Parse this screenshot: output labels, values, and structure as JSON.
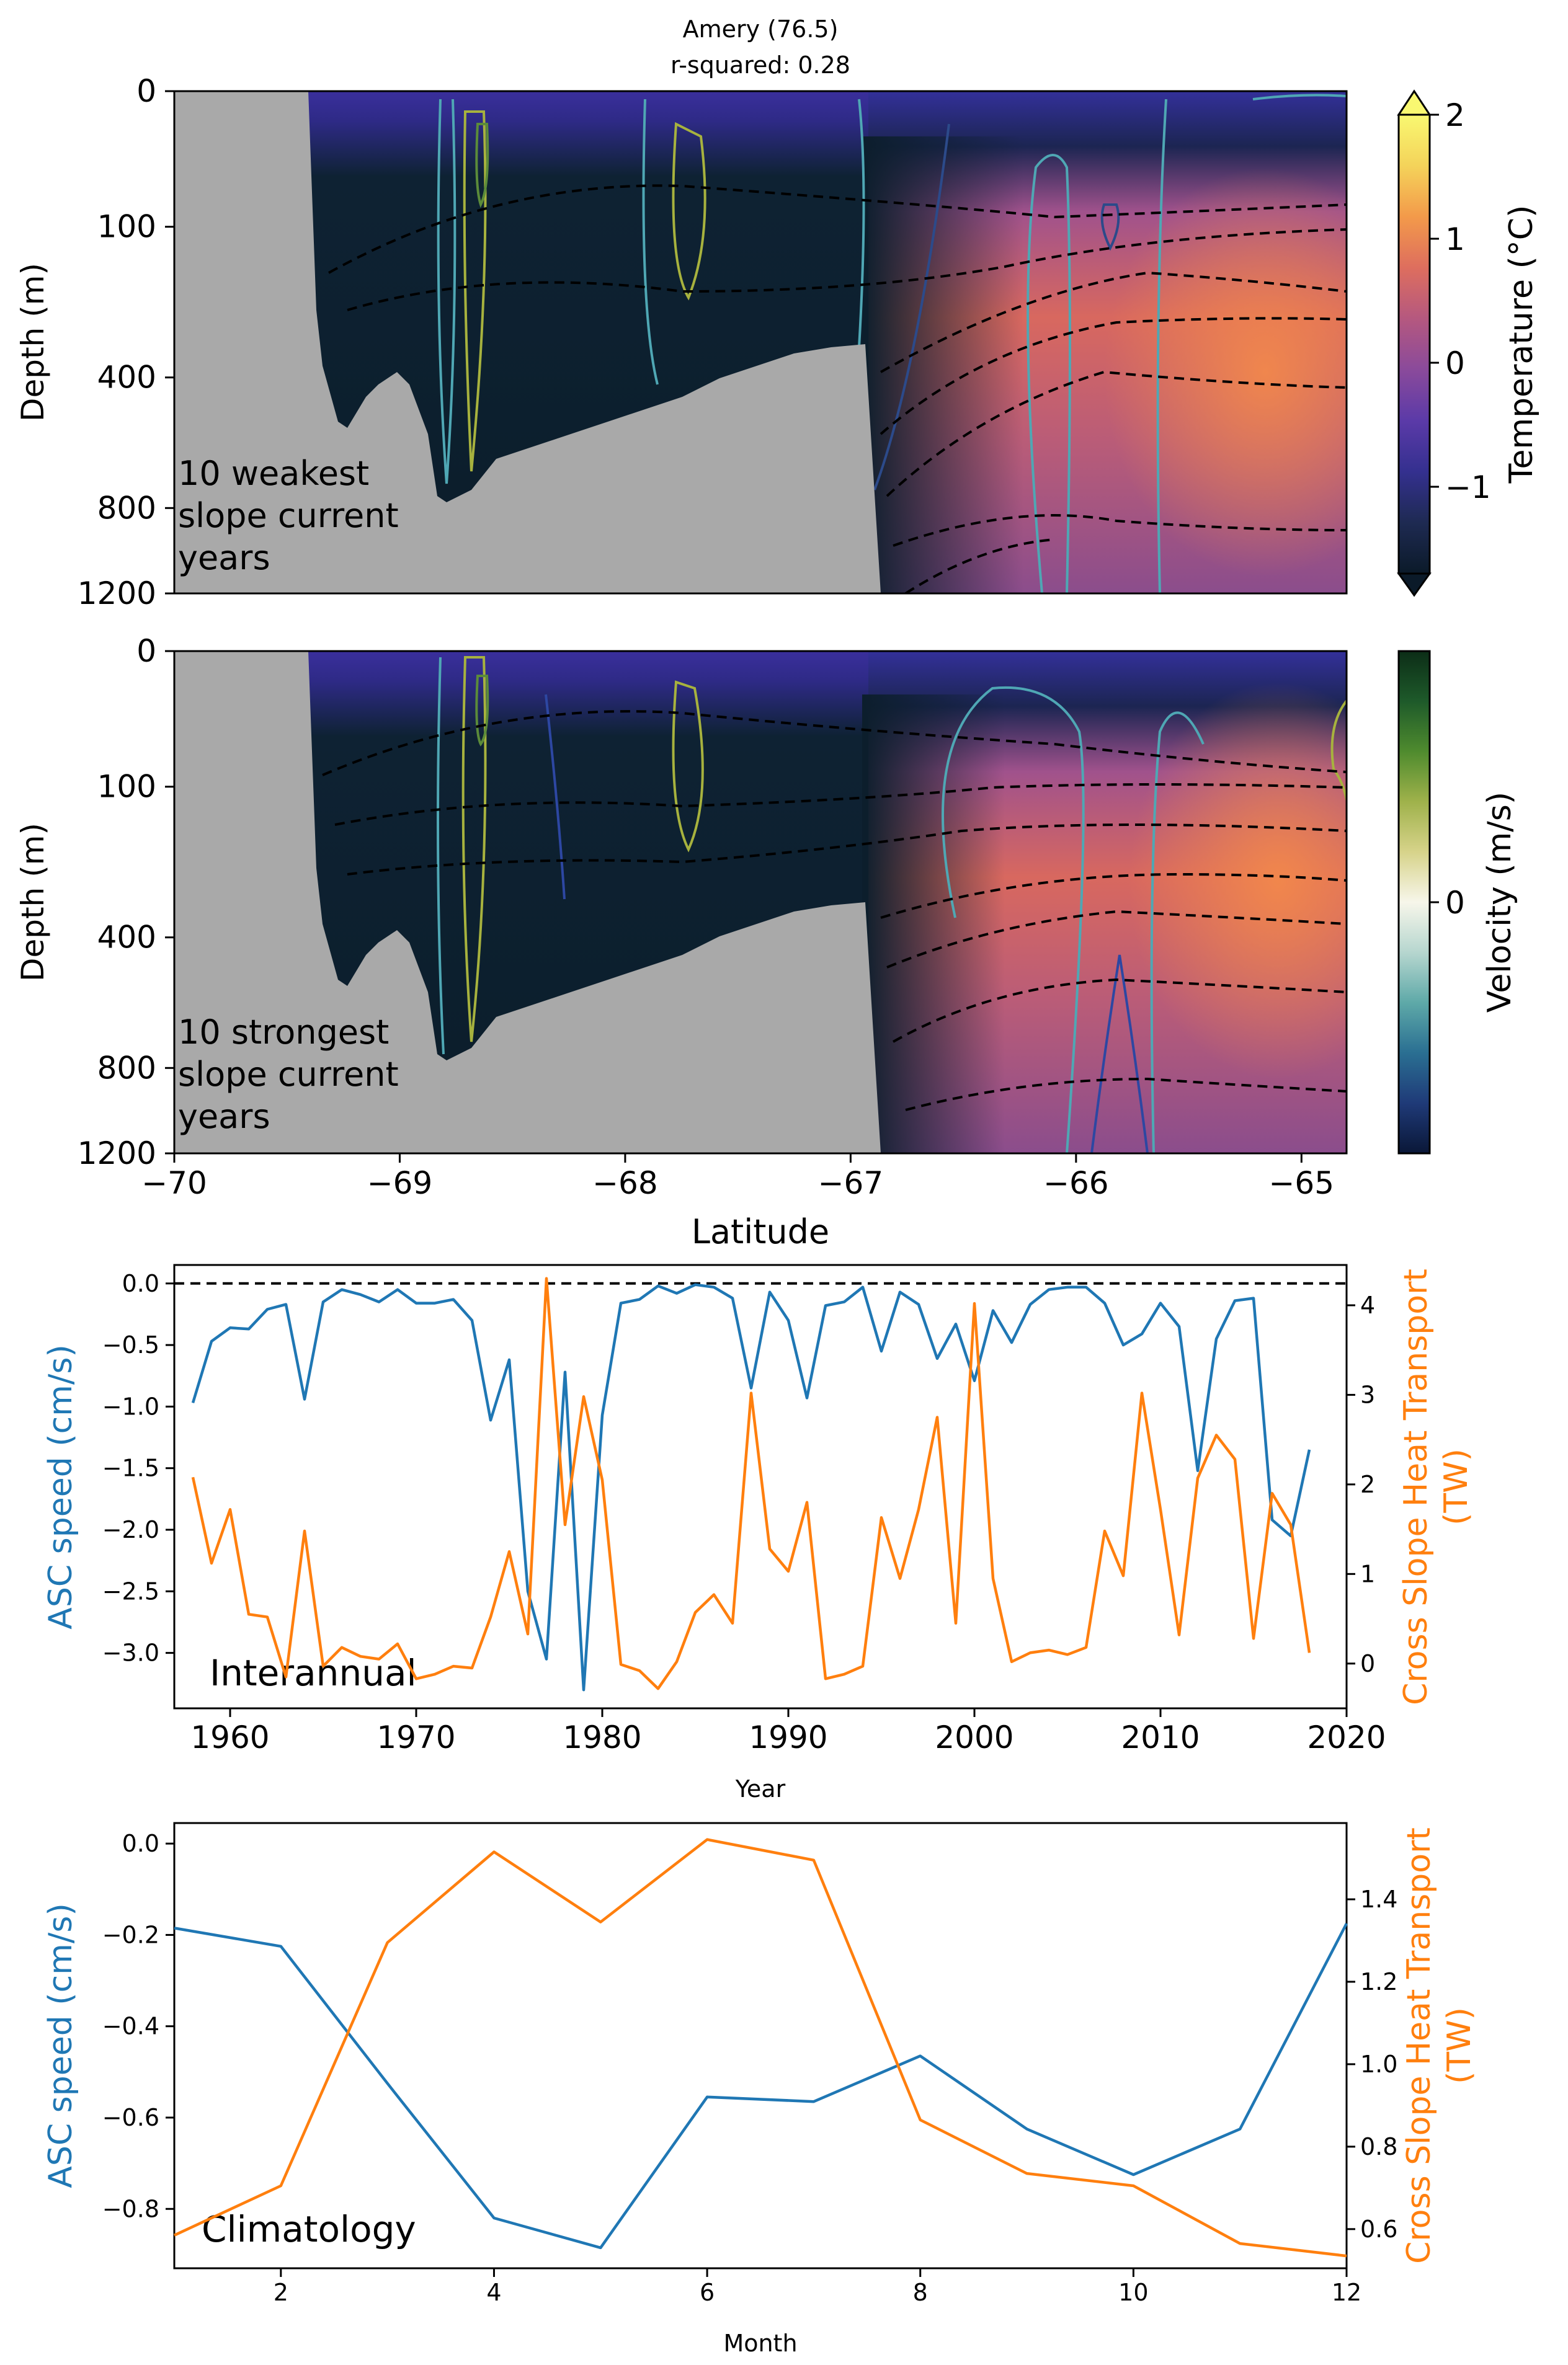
{
  "title_line1": "Amery (76.5)",
  "title_line2": "r-squared: 0.28",
  "colors": {
    "blue": "#1f77b4",
    "orange": "#ff7f0e",
    "land": "#a9a9a9",
    "contour_dash": "#000000"
  },
  "section_axes": {
    "ylabel": "Depth (m)",
    "yticks": [
      "0",
      "100",
      "400",
      "800",
      "1200"
    ],
    "xlabel": "Latitude",
    "xticks": [
      "−70",
      "−69",
      "−68",
      "−67",
      "−66",
      "−65"
    ]
  },
  "panel_weak": {
    "label_line1": "10 weakest",
    "label_line2": "slope current",
    "label_line3": "years"
  },
  "panel_strong": {
    "label_line1": "10 strongest",
    "label_line2": "slope current",
    "label_line3": "years"
  },
  "colorbar_temp": {
    "label": "Temperature (°C)",
    "ticks": [
      "2",
      "1",
      "0",
      "−1"
    ],
    "stops": [
      "#0b1a29",
      "#1e2a52",
      "#34308f",
      "#5b3aa8",
      "#8a4a9b",
      "#b5587f",
      "#de6e5e",
      "#f39a4a",
      "#f4d35a",
      "#f9f871"
    ]
  },
  "colorbar_vel": {
    "label": "Velocity (m/s)",
    "ticks": [
      "0"
    ],
    "stops": [
      "#0a1737",
      "#1f3a78",
      "#2a6f92",
      "#5ea9a8",
      "#b6d6cf",
      "#f7f6ea",
      "#d7d38a",
      "#9fb24b",
      "#4f8b2e",
      "#1e5a2a",
      "#0c2d17"
    ]
  },
  "chart_data": [
    {
      "type": "heatmap",
      "title": "Amery (76.5)\nr-squared: 0.28",
      "subtitle": "10 weakest slope current years",
      "xlabel": "Latitude",
      "ylabel": "Depth (m)",
      "xlim": [
        -70,
        -64.8
      ],
      "ylim": [
        1200,
        0
      ],
      "colorbar": "Temperature (°C)",
      "clim": [
        -1.7,
        2
      ]
    },
    {
      "type": "heatmap",
      "subtitle": "10 strongest slope current years",
      "xlabel": "Latitude",
      "ylabel": "Depth (m)",
      "xlim": [
        -70,
        -64.8
      ],
      "ylim": [
        1200,
        0
      ],
      "colorbar": "Velocity (m/s)"
    },
    {
      "type": "line",
      "annotation": "Interannual",
      "xlabel": "Year",
      "ylabel": "ASC speed (cm/s)",
      "y2label": "Cross Slope Heat Transport (TW)",
      "xlim": [
        1957,
        2020
      ],
      "ylim": [
        -3.45,
        0.15
      ],
      "y2lim": [
        -0.5,
        4.45
      ],
      "xticks": [
        1960,
        1970,
        1980,
        1990,
        2000,
        2010,
        2020
      ],
      "yticks": [
        0.0,
        -0.5,
        -1.0,
        -1.5,
        -2.0,
        -2.5,
        -3.0
      ],
      "y2ticks": [
        0,
        1,
        2,
        3,
        4
      ],
      "x": [
        1958,
        1959,
        1960,
        1961,
        1962,
        1963,
        1964,
        1965,
        1966,
        1967,
        1968,
        1969,
        1970,
        1971,
        1972,
        1973,
        1974,
        1975,
        1976,
        1977,
        1978,
        1979,
        1980,
        1981,
        1982,
        1983,
        1984,
        1985,
        1986,
        1987,
        1988,
        1989,
        1990,
        1991,
        1992,
        1993,
        1994,
        1995,
        1996,
        1997,
        1998,
        1999,
        2000,
        2001,
        2002,
        2003,
        2004,
        2005,
        2006,
        2007,
        2008,
        2009,
        2010,
        2011,
        2012,
        2013,
        2014,
        2015,
        2016,
        2017,
        2018
      ],
      "series": [
        {
          "name": "ASC speed (cm/s)",
          "axis": "left",
          "values": [
            -0.97,
            -0.47,
            -0.36,
            -0.37,
            -0.21,
            -0.17,
            -0.94,
            -0.15,
            -0.05,
            -0.09,
            -0.15,
            -0.05,
            -0.16,
            -0.16,
            -0.13,
            -0.3,
            -1.11,
            -0.62,
            -2.5,
            -3.05,
            -0.72,
            -3.3,
            -1.07,
            -0.16,
            -0.13,
            -0.02,
            -0.08,
            -0.01,
            -0.03,
            -0.12,
            -0.85,
            -0.07,
            -0.3,
            -0.93,
            -0.18,
            -0.15,
            -0.03,
            -0.55,
            -0.07,
            -0.17,
            -0.61,
            -0.33,
            -0.79,
            -0.22,
            -0.48,
            -0.17,
            -0.05,
            -0.03,
            -0.03,
            -0.16,
            -0.5,
            -0.41,
            -0.16,
            -0.35,
            -1.52,
            -0.45,
            -0.14,
            -0.12,
            -1.92,
            -2.05,
            -1.35
          ]
        },
        {
          "name": "Cross Slope Heat Transport (TW)",
          "axis": "right",
          "values": [
            2.08,
            1.12,
            1.72,
            0.55,
            0.52,
            -0.15,
            1.48,
            -0.03,
            0.18,
            0.08,
            0.05,
            0.22,
            -0.17,
            -0.12,
            -0.03,
            -0.05,
            0.52,
            1.25,
            0.33,
            4.3,
            1.55,
            2.98,
            2.05,
            -0.01,
            -0.08,
            -0.28,
            0.02,
            0.57,
            0.77,
            0.45,
            3.02,
            1.28,
            1.03,
            1.8,
            -0.17,
            -0.12,
            -0.03,
            1.63,
            0.95,
            1.72,
            2.75,
            0.45,
            4.02,
            0.95,
            0.02,
            0.12,
            0.15,
            0.1,
            0.18,
            1.48,
            0.98,
            3.02,
            1.72,
            0.32,
            2.07,
            2.55,
            2.28,
            0.28,
            1.9,
            1.55,
            0.12
          ]
        }
      ],
      "hline": 0.0
    },
    {
      "type": "line",
      "annotation": "Climatology",
      "xlabel": "Month",
      "ylabel": "ASC speed (cm/s)",
      "y2label": "Cross Slope Heat Transport (TW)",
      "xlim": [
        1,
        12
      ],
      "ylim": [
        -0.93,
        0.045
      ],
      "y2lim": [
        0.505,
        1.585
      ],
      "xticks": [
        2,
        4,
        6,
        8,
        10,
        12
      ],
      "yticks": [
        0.0,
        -0.2,
        -0.4,
        -0.6,
        -0.8
      ],
      "y2ticks": [
        0.6,
        0.8,
        1.0,
        1.2,
        1.4
      ],
      "x": [
        1,
        2,
        3,
        4,
        5,
        6,
        7,
        8,
        9,
        10,
        11,
        12
      ],
      "series": [
        {
          "name": "ASC speed (cm/s)",
          "axis": "left",
          "values": [
            -0.185,
            -0.225,
            -0.525,
            -0.82,
            -0.885,
            -0.555,
            -0.565,
            -0.465,
            -0.625,
            -0.725,
            -0.625,
            -0.175
          ]
        },
        {
          "name": "Cross Slope Heat Transport (TW)",
          "axis": "right",
          "values": [
            0.585,
            0.705,
            1.295,
            1.515,
            1.345,
            1.545,
            1.495,
            0.865,
            0.735,
            0.705,
            0.565,
            0.535
          ]
        }
      ]
    }
  ],
  "panel3": {
    "annotation": "Interannual",
    "xlabel": "Year",
    "ylabel": "ASC speed (cm/s)",
    "y2label_line1": "Cross Slope Heat Transport",
    "y2label_line2": "(TW)"
  },
  "panel4": {
    "annotation": "Climatology",
    "xlabel": "Month",
    "ylabel": "ASC speed (cm/s)",
    "y2label_line1": "Cross Slope Heat Transport",
    "y2label_line2": "(TW)"
  }
}
